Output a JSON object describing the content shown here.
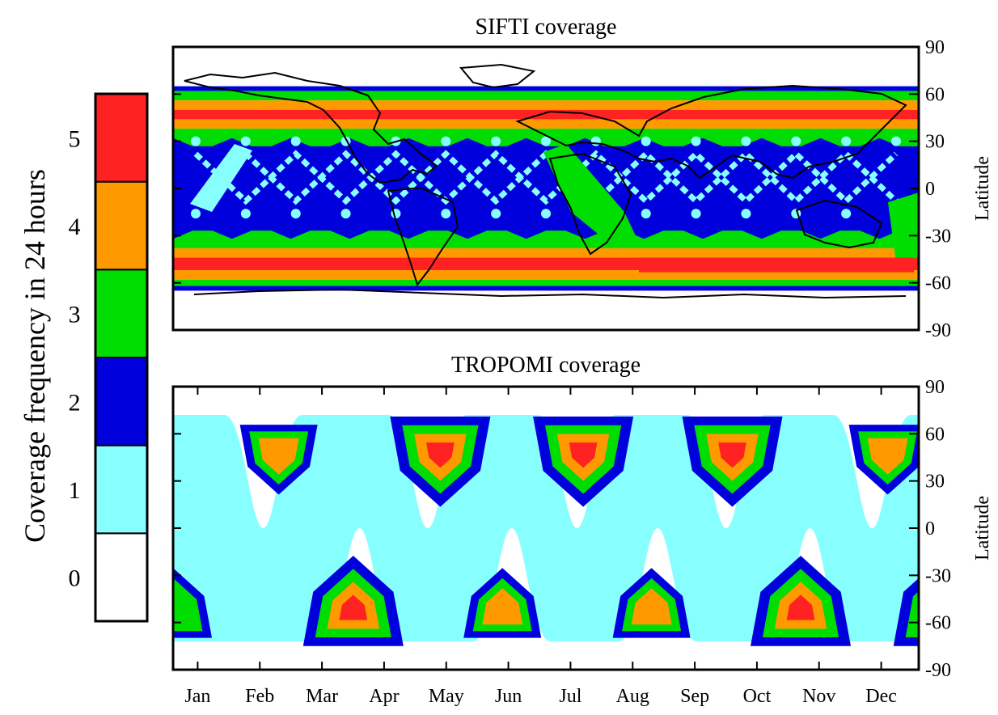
{
  "colorbar": {
    "title": "Coverage frequency in 24 hours",
    "levels": [
      {
        "value": 0,
        "label": "0",
        "color": "#ffffff"
      },
      {
        "value": 1,
        "label": "1",
        "color": "#88ffff"
      },
      {
        "value": 2,
        "label": "2",
        "color": "#0000dd"
      },
      {
        "value": 3,
        "label": "3",
        "color": "#00dd00"
      },
      {
        "value": 4,
        "label": "4",
        "color": "#ff9900"
      },
      {
        "value": 5,
        "label": "5",
        "color": "#ff2222"
      }
    ]
  },
  "chart_data": [
    {
      "type": "heatmap",
      "title": "SIFTI coverage",
      "ylabel": "Latitude",
      "ylim": [
        -90,
        90
      ],
      "yticks": [
        "90",
        "60",
        "30",
        "0",
        "-30",
        "-60",
        "-90"
      ],
      "yticks_values": [
        90,
        60,
        30,
        0,
        -30,
        -60,
        -90
      ],
      "coverage_lat_range": [
        -65,
        65
      ],
      "lat_bands": [
        {
          "from": 65,
          "to": 62,
          "level": 2
        },
        {
          "from": 62,
          "to": 56,
          "level": 3
        },
        {
          "from": 56,
          "to": 50,
          "level": 4
        },
        {
          "from": 50,
          "to": 44,
          "level": 5
        },
        {
          "from": 44,
          "to": 38,
          "level": 4
        },
        {
          "from": 38,
          "to": 32,
          "level": 3
        },
        {
          "from": 32,
          "to": -32,
          "level": 2
        },
        {
          "from": -32,
          "to": -38,
          "level": 3
        },
        {
          "from": -38,
          "to": -44,
          "level": 4
        },
        {
          "from": -44,
          "to": -52,
          "level": 5
        },
        {
          "from": -52,
          "to": -58,
          "level": 4
        },
        {
          "from": -58,
          "to": -62,
          "level": 3
        },
        {
          "from": -62,
          "to": -65,
          "level": 2
        }
      ],
      "ground_track_crossings": 14,
      "basemap": "world coastlines"
    },
    {
      "type": "heatmap",
      "title": "TROPOMI coverage",
      "ylabel": "Latitude",
      "ylim": [
        -90,
        90
      ],
      "yticks": [
        "90",
        "60",
        "30",
        "0",
        "-30",
        "-60",
        "-90"
      ],
      "yticks_values": [
        90,
        60,
        30,
        0,
        -30,
        -60,
        -90
      ],
      "xticks": [
        "Jan",
        "Feb",
        "Mar",
        "Apr",
        "May",
        "Jun",
        "Jul",
        "Aug",
        "Sep",
        "Oct",
        "Nov",
        "Dec"
      ],
      "coverage_lat_range": [
        -72,
        72
      ],
      "north_hotspots": [
        {
          "month": 1.7,
          "max_level": 4
        },
        {
          "month": 4.3,
          "max_level": 5
        },
        {
          "month": 6.6,
          "max_level": 5
        },
        {
          "month": 9.0,
          "max_level": 5
        },
        {
          "month": 11.5,
          "max_level": 4
        }
      ],
      "south_hotspots": [
        {
          "month": 0.0,
          "max_level": 3
        },
        {
          "month": 2.9,
          "max_level": 5
        },
        {
          "month": 5.3,
          "max_level": 4
        },
        {
          "month": 7.7,
          "max_level": 4
        },
        {
          "month": 10.1,
          "max_level": 5
        },
        {
          "month": 12.4,
          "max_level": 5
        }
      ]
    }
  ]
}
